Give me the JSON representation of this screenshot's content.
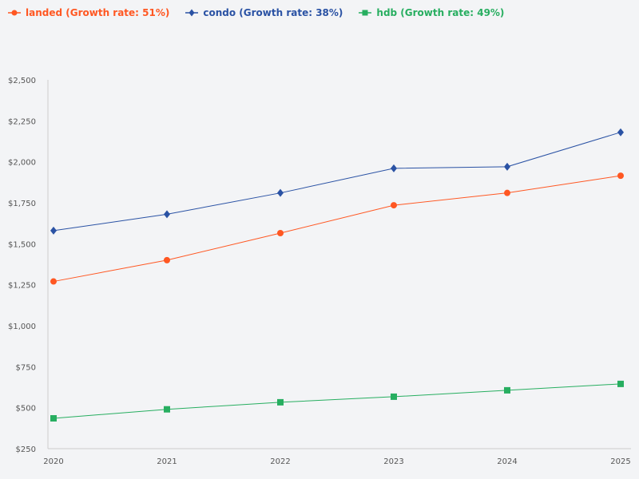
{
  "chart_data": {
    "type": "line",
    "title": "",
    "xlabel": "",
    "ylabel": "",
    "categories": [
      "2020",
      "2021",
      "2022",
      "2023",
      "2024",
      "2025"
    ],
    "ylim": [
      250,
      2500
    ],
    "yticks": [
      "$250",
      "$500",
      "$750",
      "$1,000",
      "$1,250",
      "$1,500",
      "$1,750",
      "$2,000",
      "$2,250",
      "$2,500"
    ],
    "ytick_values": [
      250,
      500,
      750,
      1000,
      1250,
      1500,
      1750,
      2000,
      2250,
      2500
    ],
    "grid": false,
    "legend_position": "top-left",
    "series": [
      {
        "name": "landed (Growth rate: 51%)",
        "color": "#ff5722",
        "marker": "circle",
        "values": [
          1270,
          1400,
          1565,
          1735,
          1810,
          1915
        ]
      },
      {
        "name": "condo (Growth rate: 38%)",
        "color": "#2a52a4",
        "marker": "diamond",
        "values": [
          1580,
          1680,
          1810,
          1960,
          1970,
          2180
        ]
      },
      {
        "name": "hdb (Growth rate: 49%)",
        "color": "#27ae60",
        "marker": "square",
        "values": [
          435,
          490,
          533,
          567,
          606,
          645
        ]
      }
    ]
  }
}
